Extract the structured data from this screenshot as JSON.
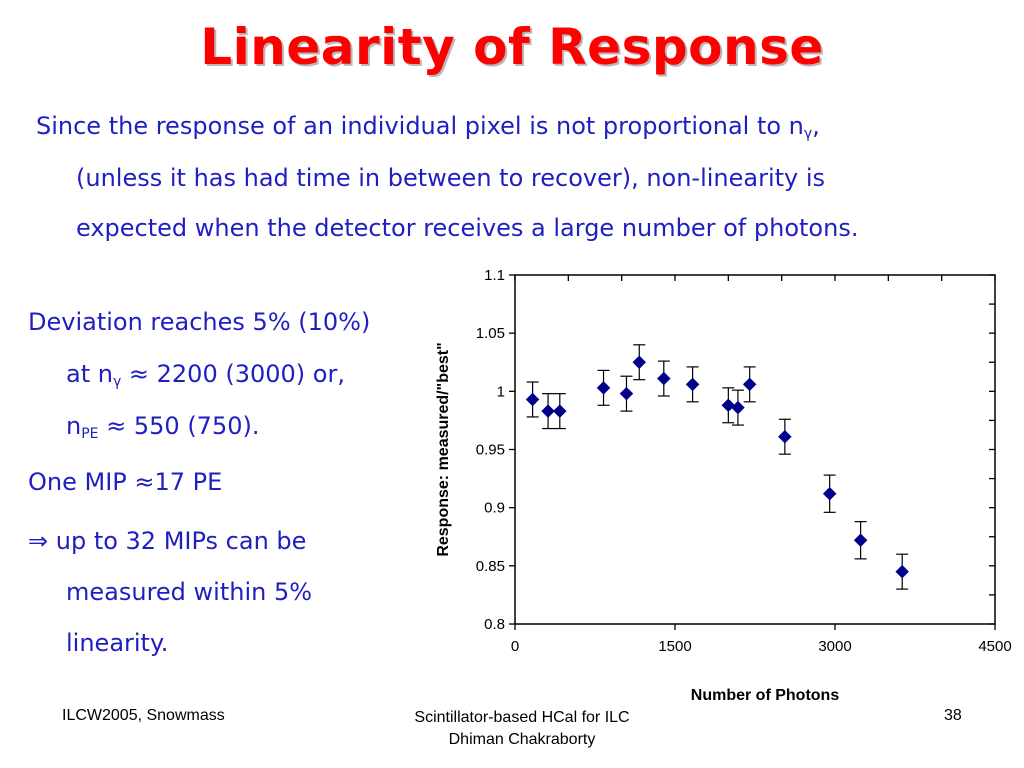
{
  "slide": {
    "title": "Linearity of Response",
    "intro": {
      "l1a": "Since the response of an individual pixel is not proportional to n",
      "l1sub": "γ",
      "l1b": ",",
      "l2": "(unless it has had time in between to recover), non-linearity is",
      "l3": "expected when the detector receives a large number of photons."
    },
    "bullets": {
      "b1": "Deviation reaches 5% (10%)",
      "b2a": "at n",
      "b2sub": "γ",
      "b2b": " ≈ 2200 (3000) or,",
      "b3a": "n",
      "b3sub": "PE",
      "b3b": " ≈ 550 (750).",
      "b4": "One MIP ≈17 PE",
      "b5": "⇒ up to 32 MIPs can be",
      "b6": "measured within 5%",
      "b7": "linearity."
    },
    "footer": {
      "left": "ILCW2005, Snowmass",
      "center1": "Scintillator-based HCal for ILC",
      "center2": "Dhiman Chakraborty",
      "page": "38"
    }
  },
  "chart_data": {
    "type": "scatter",
    "xlabel": "Number of Photons",
    "ylabel": "Response: measured/\"best\"",
    "xlim": [
      0,
      4500
    ],
    "ylim": [
      0.8,
      1.1
    ],
    "xticks": [
      "0",
      "1500",
      "3000",
      "4500"
    ],
    "yticks": [
      "0.8",
      "0.85",
      "0.9",
      "0.95",
      "1",
      "1.05",
      "1.1"
    ],
    "marker_color": "#00008b",
    "points": [
      {
        "x": 165,
        "y": 0.993,
        "err": 0.015
      },
      {
        "x": 310,
        "y": 0.983,
        "err": 0.015
      },
      {
        "x": 420,
        "y": 0.983,
        "err": 0.015
      },
      {
        "x": 830,
        "y": 1.003,
        "err": 0.015
      },
      {
        "x": 1045,
        "y": 0.998,
        "err": 0.015
      },
      {
        "x": 1165,
        "y": 1.025,
        "err": 0.015
      },
      {
        "x": 1395,
        "y": 1.011,
        "err": 0.015
      },
      {
        "x": 1665,
        "y": 1.006,
        "err": 0.015
      },
      {
        "x": 2000,
        "y": 0.988,
        "err": 0.015
      },
      {
        "x": 2090,
        "y": 0.986,
        "err": 0.015
      },
      {
        "x": 2200,
        "y": 1.006,
        "err": 0.015
      },
      {
        "x": 2530,
        "y": 0.961,
        "err": 0.015
      },
      {
        "x": 2950,
        "y": 0.912,
        "err": 0.016
      },
      {
        "x": 3240,
        "y": 0.872,
        "err": 0.016
      },
      {
        "x": 3630,
        "y": 0.845,
        "err": 0.015
      }
    ]
  }
}
